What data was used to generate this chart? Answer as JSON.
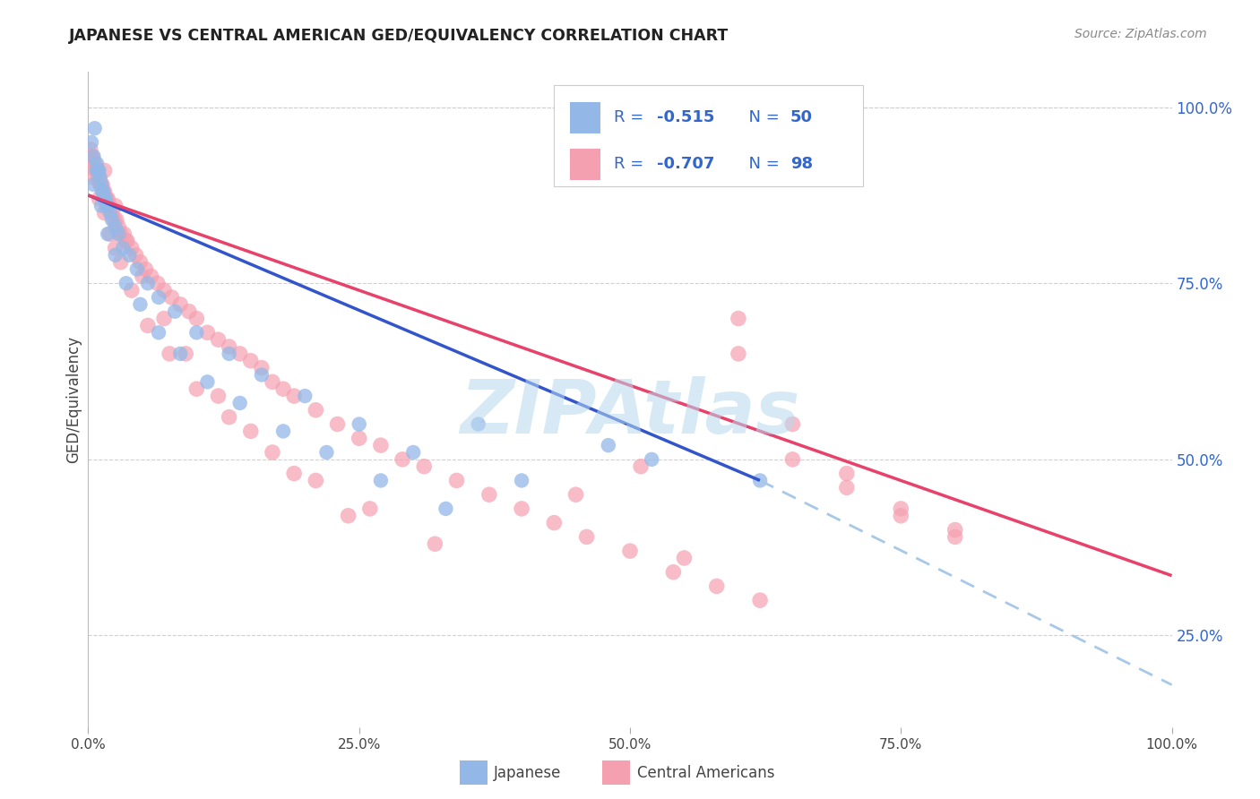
{
  "title": "JAPANESE VS CENTRAL AMERICAN GED/EQUIVALENCY CORRELATION CHART",
  "source": "Source: ZipAtlas.com",
  "ylabel": "GED/Equivalency",
  "background_color": "#ffffff",
  "japanese_R": -0.515,
  "japanese_N": 50,
  "central_american_R": -0.707,
  "central_american_N": 98,
  "japanese_color": "#93b8e8",
  "central_american_color": "#f5a0b0",
  "japanese_line_color": "#3355cc",
  "central_american_line_color": "#e8416a",
  "japanese_dashed_color": "#a8c8e8",
  "grid_color": "#d0d0d0",
  "tick_label_color_right": "#3366cc",
  "watermark": "ZIPAtlas",
  "watermark_color": "#b8d8f0",
  "xlim": [
    0.0,
    1.0
  ],
  "ylim": [
    0.12,
    1.05
  ],
  "xticks": [
    0.0,
    0.25,
    0.5,
    0.75,
    1.0
  ],
  "xticklabels": [
    "0.0%",
    "25.0%",
    "50.0%",
    "75.0%",
    "100.0%"
  ],
  "yticks": [
    0.25,
    0.5,
    0.75,
    1.0
  ],
  "yticklabels_right": [
    "25.0%",
    "50.0%",
    "75.0%",
    "100.0%"
  ],
  "jp_line_x_start": 0.0,
  "jp_line_x_solid_end": 0.62,
  "jp_line_x_dash_end": 1.0,
  "jp_line_y_start": 0.875,
  "jp_line_y_solid_end": 0.47,
  "jp_line_y_dash_end": 0.18,
  "ca_line_x_start": 0.0,
  "ca_line_x_end": 1.0,
  "ca_line_y_start": 0.875,
  "ca_line_y_end": 0.335,
  "japanese_x": [
    0.003,
    0.005,
    0.006,
    0.008,
    0.009,
    0.01,
    0.011,
    0.012,
    0.013,
    0.014,
    0.015,
    0.016,
    0.017,
    0.018,
    0.02,
    0.022,
    0.025,
    0.028,
    0.032,
    0.038,
    0.045,
    0.055,
    0.065,
    0.08,
    0.1,
    0.13,
    0.16,
    0.2,
    0.25,
    0.3,
    0.005,
    0.008,
    0.012,
    0.018,
    0.025,
    0.035,
    0.048,
    0.065,
    0.085,
    0.11,
    0.14,
    0.18,
    0.22,
    0.27,
    0.33,
    0.4,
    0.48,
    0.36,
    0.52,
    0.62
  ],
  "japanese_y": [
    0.95,
    0.93,
    0.97,
    0.92,
    0.91,
    0.91,
    0.9,
    0.89,
    0.88,
    0.88,
    0.87,
    0.87,
    0.86,
    0.86,
    0.85,
    0.84,
    0.83,
    0.82,
    0.8,
    0.79,
    0.77,
    0.75,
    0.73,
    0.71,
    0.68,
    0.65,
    0.62,
    0.59,
    0.55,
    0.51,
    0.89,
    0.91,
    0.86,
    0.82,
    0.79,
    0.75,
    0.72,
    0.68,
    0.65,
    0.61,
    0.58,
    0.54,
    0.51,
    0.47,
    0.43,
    0.47,
    0.52,
    0.55,
    0.5,
    0.47
  ],
  "central_american_x": [
    0.002,
    0.003,
    0.004,
    0.005,
    0.006,
    0.007,
    0.008,
    0.009,
    0.01,
    0.011,
    0.012,
    0.013,
    0.014,
    0.015,
    0.016,
    0.017,
    0.018,
    0.02,
    0.022,
    0.024,
    0.026,
    0.028,
    0.03,
    0.033,
    0.036,
    0.04,
    0.044,
    0.048,
    0.053,
    0.058,
    0.064,
    0.07,
    0.077,
    0.085,
    0.093,
    0.1,
    0.11,
    0.12,
    0.13,
    0.14,
    0.15,
    0.16,
    0.17,
    0.18,
    0.19,
    0.21,
    0.23,
    0.25,
    0.27,
    0.29,
    0.31,
    0.34,
    0.37,
    0.4,
    0.43,
    0.46,
    0.5,
    0.54,
    0.58,
    0.62,
    0.005,
    0.01,
    0.015,
    0.02,
    0.025,
    0.03,
    0.04,
    0.055,
    0.075,
    0.1,
    0.13,
    0.17,
    0.21,
    0.26,
    0.32,
    0.015,
    0.025,
    0.035,
    0.05,
    0.07,
    0.09,
    0.12,
    0.15,
    0.19,
    0.24,
    0.6,
    0.6,
    0.65,
    0.65,
    0.7,
    0.7,
    0.75,
    0.75,
    0.8,
    0.8,
    0.51,
    0.45,
    0.55
  ],
  "central_american_y": [
    0.94,
    0.93,
    0.93,
    0.92,
    0.92,
    0.91,
    0.91,
    0.9,
    0.9,
    0.89,
    0.89,
    0.89,
    0.88,
    0.88,
    0.87,
    0.87,
    0.87,
    0.86,
    0.85,
    0.84,
    0.84,
    0.83,
    0.82,
    0.82,
    0.81,
    0.8,
    0.79,
    0.78,
    0.77,
    0.76,
    0.75,
    0.74,
    0.73,
    0.72,
    0.71,
    0.7,
    0.68,
    0.67,
    0.66,
    0.65,
    0.64,
    0.63,
    0.61,
    0.6,
    0.59,
    0.57,
    0.55,
    0.53,
    0.52,
    0.5,
    0.49,
    0.47,
    0.45,
    0.43,
    0.41,
    0.39,
    0.37,
    0.34,
    0.32,
    0.3,
    0.9,
    0.87,
    0.85,
    0.82,
    0.8,
    0.78,
    0.74,
    0.69,
    0.65,
    0.6,
    0.56,
    0.51,
    0.47,
    0.43,
    0.38,
    0.91,
    0.86,
    0.81,
    0.76,
    0.7,
    0.65,
    0.59,
    0.54,
    0.48,
    0.42,
    0.7,
    0.65,
    0.55,
    0.5,
    0.48,
    0.46,
    0.43,
    0.42,
    0.4,
    0.39,
    0.49,
    0.45,
    0.36
  ]
}
